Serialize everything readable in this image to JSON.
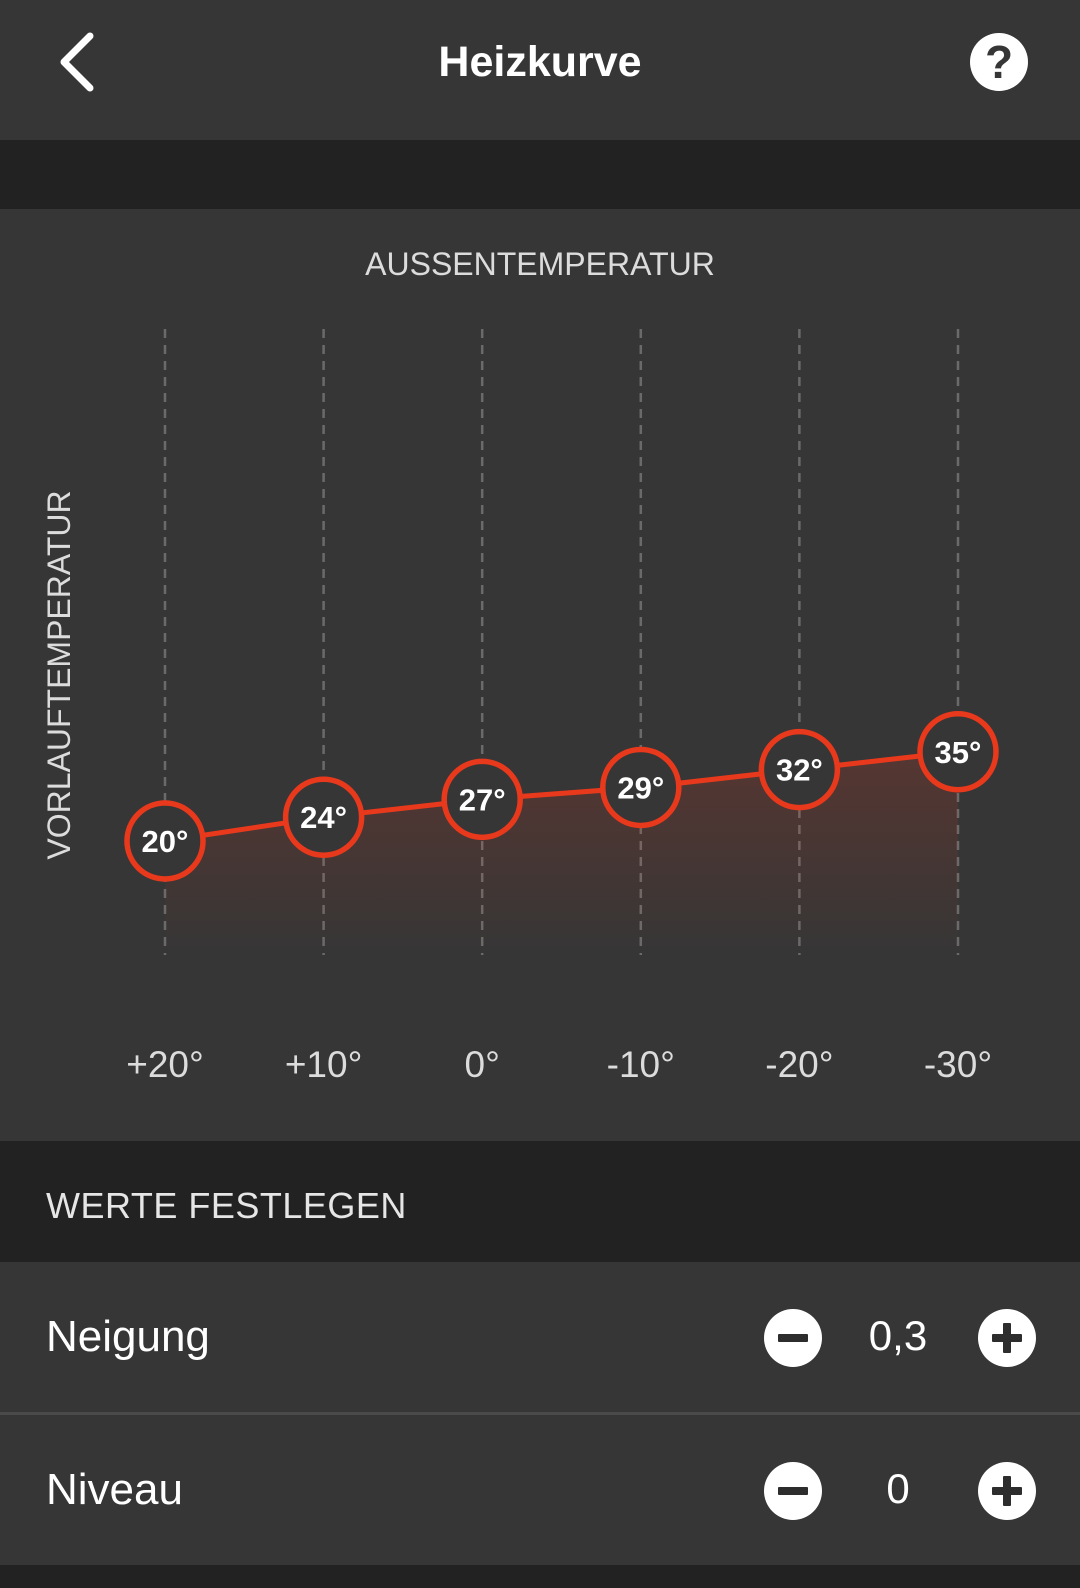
{
  "app_bar": {
    "title": "Heizkurve",
    "back_icon": "chevron-left-icon",
    "help_icon": "help-circle-icon",
    "help_glyph": "?"
  },
  "chart_data": {
    "type": "line",
    "xlabel": "AUSSENTEMPERATUR",
    "ylabel": "VORLAUFTEMPERATUR",
    "categories": [
      "+20°",
      "+10°",
      "0°",
      "-10°",
      "-20°",
      "-30°"
    ],
    "x": [
      20,
      10,
      0,
      -10,
      -20,
      -30
    ],
    "series": [
      {
        "values": [
          20,
          24,
          27,
          29,
          32,
          35
        ],
        "labels": [
          "20°",
          "24°",
          "27°",
          "29°",
          "32°",
          "35°"
        ]
      }
    ],
    "colors": {
      "line": "#e8391c",
      "point_fill": "#363636",
      "grid": "#6a6a6a"
    },
    "grid": "vertical dashed"
  },
  "settings": {
    "section_title": "WERTE FESTLEGEN",
    "rows": [
      {
        "label": "Neigung",
        "value": "0,3",
        "decrement_icon": "minus-circle-icon",
        "increment_icon": "plus-circle-icon"
      },
      {
        "label": "Niveau",
        "value": "0",
        "decrement_icon": "minus-circle-icon",
        "increment_icon": "plus-circle-icon"
      }
    ]
  },
  "colors": {
    "background": "#222222",
    "panel": "#363636",
    "accent": "#e8391c",
    "text": "#ffffff"
  }
}
